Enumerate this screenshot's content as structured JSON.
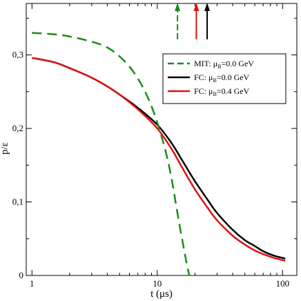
{
  "chart_data": {
    "type": "line",
    "xlabel": "t (μs)",
    "ylabel": "p/ε",
    "xscale": "log",
    "xlim": [
      0.9,
      130
    ],
    "ylim": [
      0,
      0.37
    ],
    "xticks": [
      {
        "value": 1,
        "label": "1"
      },
      {
        "value": 10,
        "label": "10"
      },
      {
        "value": 100,
        "label": "100"
      }
    ],
    "yticks": [
      {
        "value": 0,
        "label": "0"
      },
      {
        "value": 0.1,
        "label": "0,1"
      },
      {
        "value": 0.2,
        "label": "0,2"
      },
      {
        "value": 0.3,
        "label": "0,3"
      }
    ],
    "grid": false,
    "legend_position": "top-right",
    "series": [
      {
        "name": "MIT: μB=0.0 GeV",
        "legend_main": "MIT: μ",
        "legend_sub": "B",
        "legend_rest": "=0.0 GeV",
        "color": "#1a8a1a",
        "dash": "dashed",
        "points": [
          [
            1,
            0.33
          ],
          [
            1.5,
            0.328
          ],
          [
            2,
            0.325
          ],
          [
            3,
            0.318
          ],
          [
            4,
            0.31
          ],
          [
            5,
            0.298
          ],
          [
            6,
            0.284
          ],
          [
            7,
            0.268
          ],
          [
            8,
            0.25
          ],
          [
            9,
            0.23
          ],
          [
            10,
            0.208
          ],
          [
            11,
            0.185
          ],
          [
            12,
            0.16
          ],
          [
            13,
            0.132
          ],
          [
            14,
            0.1
          ],
          [
            15,
            0.07
          ],
          [
            16,
            0.044
          ],
          [
            17,
            0.02
          ],
          [
            18,
            0.0
          ]
        ]
      },
      {
        "name": "FC: μB=0.0 GeV",
        "legend_main": "FC: μ",
        "legend_sub": "B",
        "legend_rest": "=0.0 GeV",
        "color": "#000000",
        "dash": "solid",
        "points": [
          [
            1,
            0.296
          ],
          [
            1.5,
            0.29
          ],
          [
            2,
            0.282
          ],
          [
            3,
            0.269
          ],
          [
            4,
            0.257
          ],
          [
            5,
            0.246
          ],
          [
            7,
            0.228
          ],
          [
            10,
            0.205
          ],
          [
            13,
            0.18
          ],
          [
            16,
            0.155
          ],
          [
            20,
            0.128
          ],
          [
            25,
            0.104
          ],
          [
            30,
            0.085
          ],
          [
            40,
            0.062
          ],
          [
            50,
            0.048
          ],
          [
            60,
            0.04
          ],
          [
            70,
            0.033
          ],
          [
            85,
            0.027
          ],
          [
            105,
            0.023
          ]
        ]
      },
      {
        "name": "FC: μB=0.4 GeV",
        "legend_main": "FC: μ",
        "legend_sub": "B",
        "legend_rest": "=0.4 GeV",
        "color": "#e01010",
        "dash": "solid",
        "points": [
          [
            1,
            0.296
          ],
          [
            1.5,
            0.29
          ],
          [
            2,
            0.282
          ],
          [
            3,
            0.269
          ],
          [
            4,
            0.257
          ],
          [
            5,
            0.246
          ],
          [
            7,
            0.226
          ],
          [
            10,
            0.2
          ],
          [
            13,
            0.172
          ],
          [
            16,
            0.145
          ],
          [
            20,
            0.117
          ],
          [
            25,
            0.093
          ],
          [
            30,
            0.075
          ],
          [
            40,
            0.054
          ],
          [
            50,
            0.042
          ],
          [
            60,
            0.034
          ],
          [
            70,
            0.029
          ],
          [
            85,
            0.024
          ],
          [
            105,
            0.02
          ]
        ]
      }
    ],
    "markers": [
      {
        "x": 14.5,
        "color": "#1a8a1a"
      },
      {
        "x": 20.5,
        "color": "#e01010"
      },
      {
        "x": 25,
        "color": "#000000"
      }
    ]
  }
}
